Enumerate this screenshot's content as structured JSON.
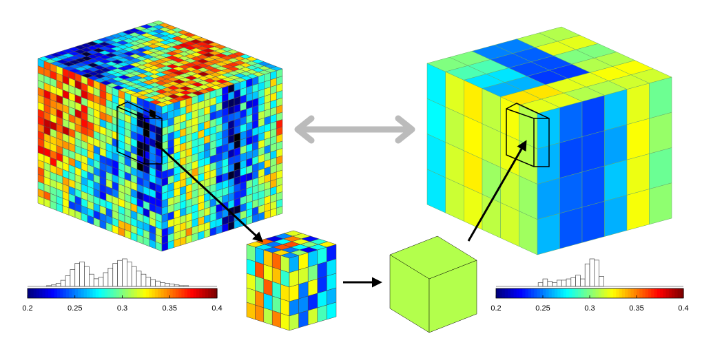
{
  "left_colorbar": {
    "lim": [
      0.2,
      0.4
    ],
    "ticks": [
      0.2,
      0.25,
      0.3,
      0.35,
      0.4
    ]
  },
  "right_colorbar": {
    "lim": [
      0.2,
      0.4
    ],
    "ticks": [
      0.2,
      0.25,
      0.3,
      0.35,
      0.4
    ]
  },
  "left_histogram": {
    "ylim": [
      0,
      36
    ],
    "bins": [
      0.22,
      0.225,
      0.23,
      0.235,
      0.24,
      0.245,
      0.25,
      0.255,
      0.26,
      0.265,
      0.27,
      0.275,
      0.28,
      0.285,
      0.29,
      0.295,
      0.3,
      0.305,
      0.31,
      0.315,
      0.32,
      0.325,
      0.33,
      0.335,
      0.34,
      0.345,
      0.35,
      0.355,
      0.36,
      0.365,
      0.37
    ],
    "counts": [
      1,
      2,
      4,
      8,
      14,
      22,
      30,
      32,
      26,
      16,
      10,
      12,
      18,
      24,
      30,
      34,
      36,
      32,
      26,
      20,
      16,
      12,
      9,
      7,
      5,
      4,
      3,
      2,
      1,
      1
    ]
  },
  "right_histogram": {
    "ylim": [
      0,
      22
    ],
    "bins": [
      0.245,
      0.25,
      0.255,
      0.26,
      0.265,
      0.27,
      0.275,
      0.28,
      0.285,
      0.29,
      0.295,
      0.3,
      0.305,
      0.31,
      0.315
    ],
    "counts": [
      3,
      6,
      4,
      3,
      5,
      5,
      6,
      7,
      9,
      6,
      18,
      22,
      21,
      8
    ]
  }
}
